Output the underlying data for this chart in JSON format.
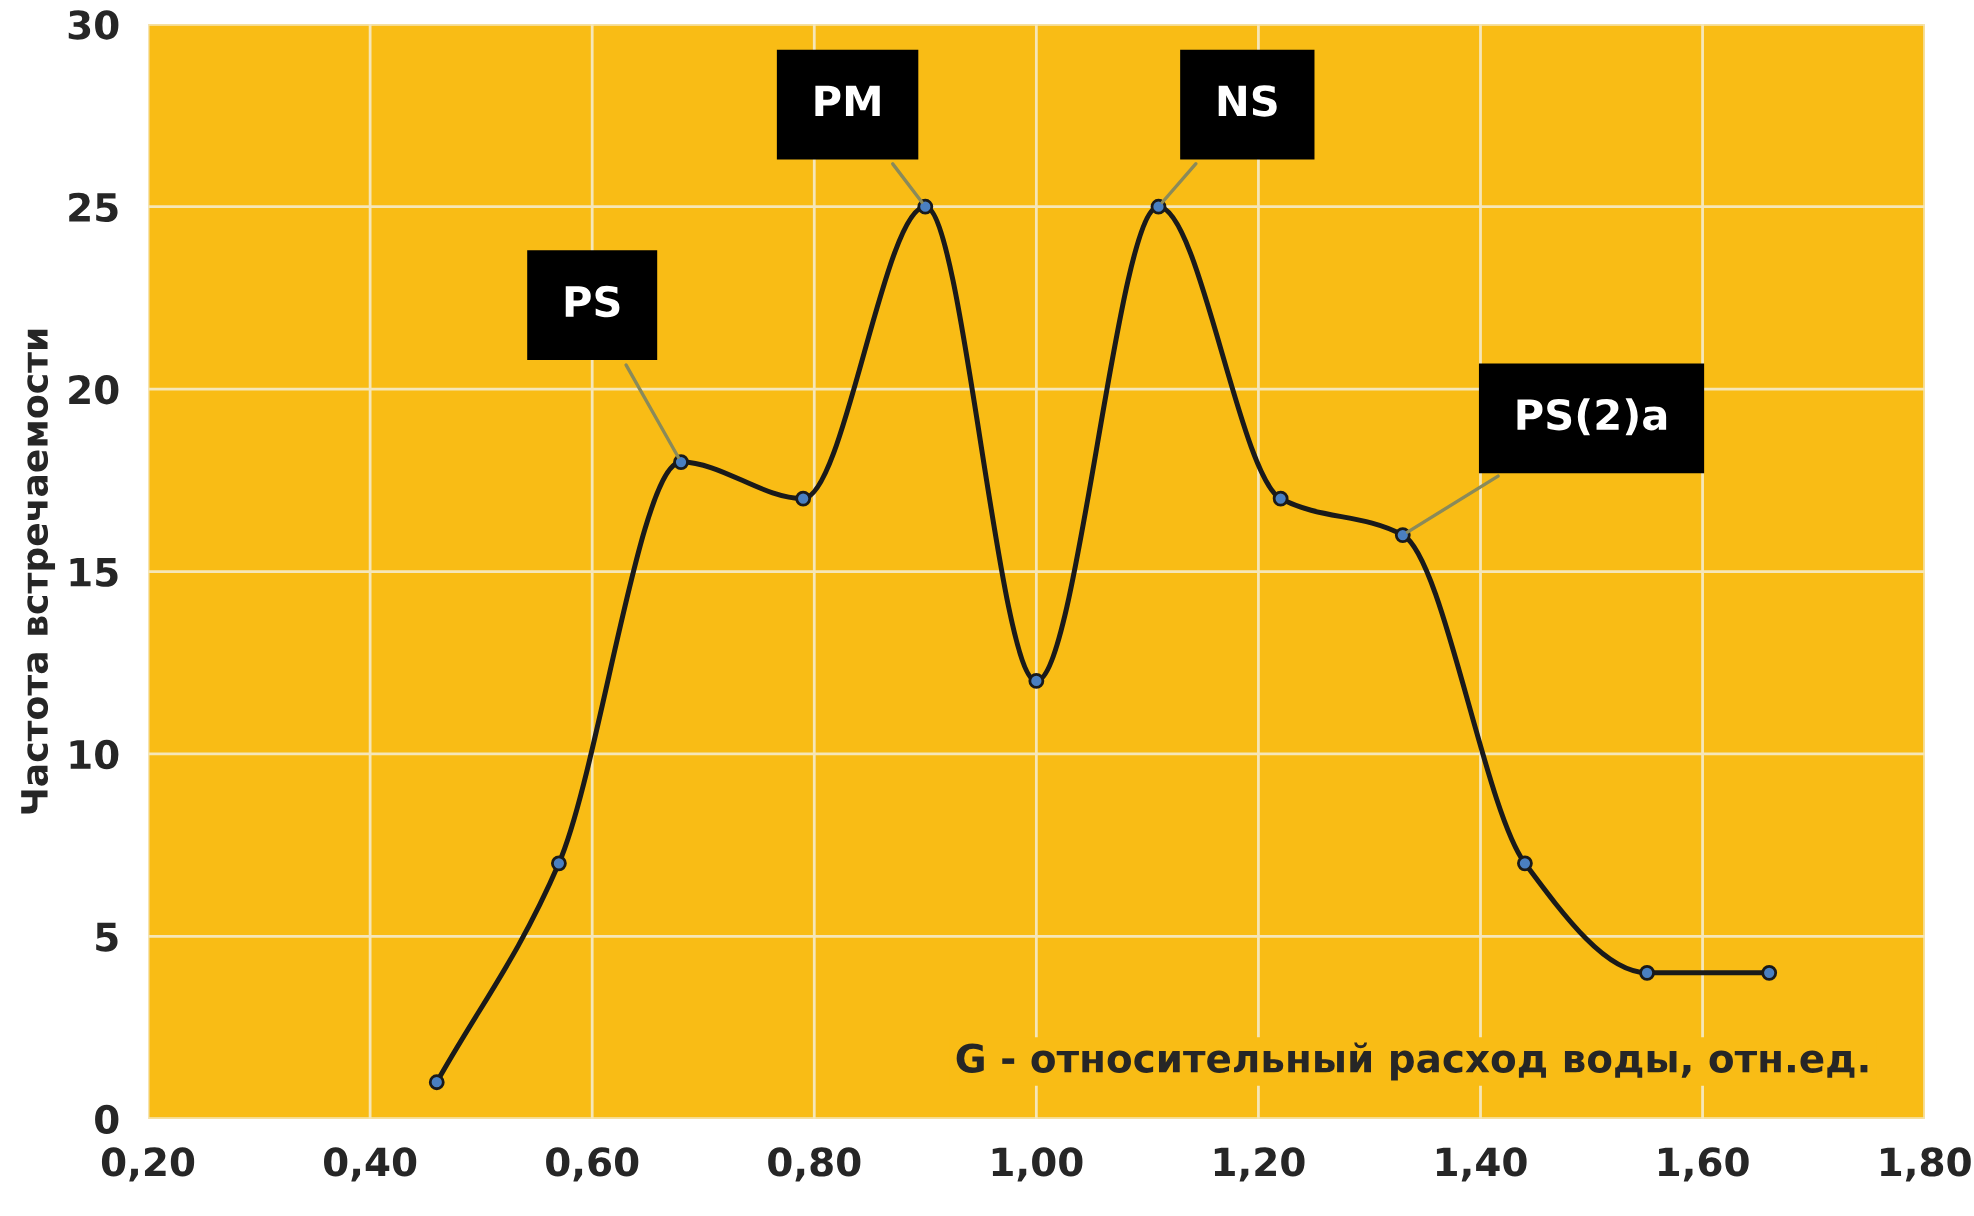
{
  "chart_data": {
    "type": "line",
    "xlabel": "G - относительный расход воды, отн.ед.",
    "ylabel": "Частота встречаемости",
    "x": [
      0.46,
      0.57,
      0.68,
      0.79,
      0.9,
      1.0,
      1.11,
      1.22,
      1.33,
      1.44,
      1.55,
      1.66
    ],
    "series": [
      {
        "color": "#1a1a1a",
        "values": [
          1,
          7,
          18,
          17,
          25,
          12,
          25,
          17,
          16,
          7,
          4,
          4
        ]
      }
    ],
    "xlim": [
      0.2,
      1.8
    ],
    "xticks": [
      {
        "value": 0.2,
        "label": "0,20"
      },
      {
        "value": 0.4,
        "label": "0,40"
      },
      {
        "value": 0.6,
        "label": "0,60"
      },
      {
        "value": 0.8,
        "label": "0,80"
      },
      {
        "value": 1.0,
        "label": "1,00"
      },
      {
        "value": 1.2,
        "label": "1,20"
      },
      {
        "value": 1.4,
        "label": "1,40"
      },
      {
        "value": 1.6,
        "label": "1,60"
      },
      {
        "value": 1.8,
        "label": "1,80"
      }
    ],
    "ylim": [
      0,
      30
    ],
    "yticks": [
      0,
      5,
      10,
      15,
      20,
      25,
      30
    ],
    "grid": true,
    "marker": "circle",
    "line_style": "solid",
    "annotations": [
      {
        "text": "PS",
        "x": 0.68,
        "y": 18
      },
      {
        "text": "PM",
        "x": 0.9,
        "y": 25
      },
      {
        "text": "NS",
        "x": 1.11,
        "y": 25
      },
      {
        "text": "PS(2)a",
        "x": 1.33,
        "y": 16
      }
    ]
  }
}
